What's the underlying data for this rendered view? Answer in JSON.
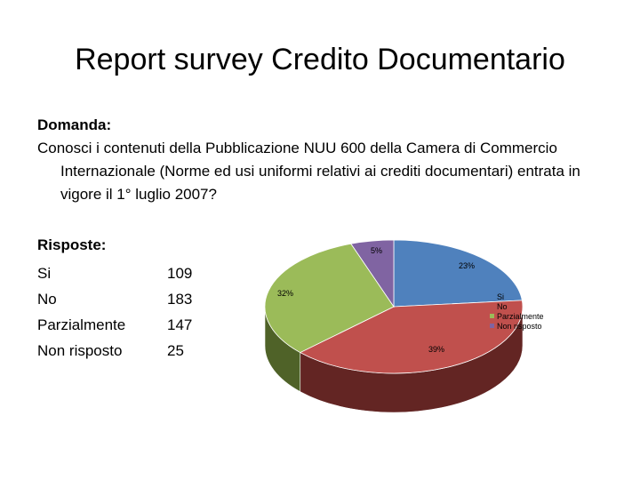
{
  "title": "Report survey Credito Documentario",
  "question": {
    "label": "Domanda:",
    "text": "Conosci i contenuti della Pubblicazione NUU 600 della Camera di Commercio Internazionale (Norme ed usi uniformi relativi ai crediti documentari) entrata in vigore il 1° luglio 2007?"
  },
  "answers": {
    "label": "Risposte:",
    "items": [
      {
        "name": "Si",
        "count": "109"
      },
      {
        "name": "No",
        "count": "183"
      },
      {
        "name": "Parzialmente",
        "count": "147"
      },
      {
        "name": "Non risposto",
        "count": "25"
      }
    ]
  },
  "chart_data": {
    "type": "pie",
    "title": "",
    "categories": [
      "Si",
      "No",
      "Parzialmente",
      "Non risposto"
    ],
    "values": [
      109,
      183,
      147,
      25
    ],
    "data_labels": [
      "23%",
      "39%",
      "32%",
      "5%"
    ],
    "colors": [
      "#4f81bd",
      "#c0504d",
      "#9bbb59",
      "#8064a2"
    ],
    "side_colors": [
      "#2c4d75",
      "#632523",
      "#4f6228",
      "#3f3151"
    ],
    "style": "3d",
    "legend": "right"
  }
}
